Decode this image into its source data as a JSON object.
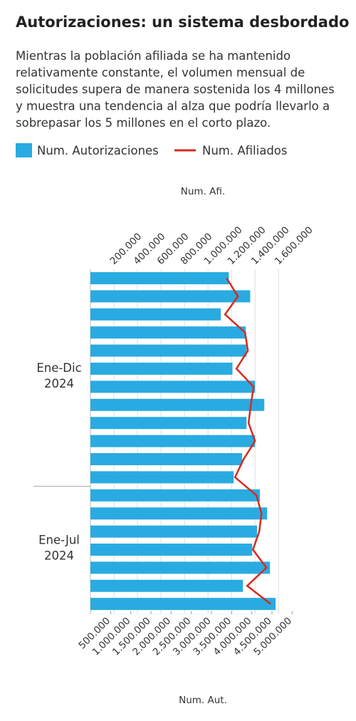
{
  "chart_data": {
    "type": "bar-line-horizontal",
    "title": "Autorizaciones: un sistema desbordado",
    "subtitle": "Mientras la población afiliada se ha mantenido relativamente constante, el volumen mensual de solicitudes supera de manera sostenida los 4 millones y muestra una tendencia al alza que podría llevarlo a sobrepasar los 5 millones en el corto plazo.",
    "groups": [
      {
        "label": [
          "Ene-Dic",
          "2024"
        ],
        "count": 12
      },
      {
        "label": [
          "Ene-Jul",
          "2024"
        ],
        "count": 7
      }
    ],
    "series": [
      {
        "name": "Num. Autorizaciones",
        "color": "#29abe2",
        "axis": "x",
        "values": [
          3430000,
          3960000,
          3230000,
          3850000,
          3870000,
          3520000,
          4080000,
          4310000,
          3870000,
          4080000,
          3760000,
          3550000,
          4200000,
          4380000,
          4130000,
          4010000,
          4450000,
          3780000,
          4590000
        ]
      },
      {
        "name": "Num. Afiliados",
        "color": "#d52b1e",
        "axis": "x2",
        "values": [
          1158000,
          1255000,
          1145000,
          1315000,
          1339000,
          1242000,
          1388000,
          1364000,
          1345000,
          1400000,
          1303000,
          1230000,
          1412000,
          1455000,
          1436000,
          1382000,
          1497000,
          1333000,
          1533000
        ]
      }
    ],
    "xlabel": "Num. Aut.",
    "x2label": "Num. Afi.",
    "xlim": [
      0,
      5100000
    ],
    "xticks": [
      {
        "value": 500000,
        "label": "500.000"
      },
      {
        "value": 1000000,
        "label": "1.000.000"
      },
      {
        "value": 1500000,
        "label": "1.500.000"
      },
      {
        "value": 2000000,
        "label": "2.000.000"
      },
      {
        "value": 2500000,
        "label": "2.500.000"
      },
      {
        "value": 3000000,
        "label": "3.000.000"
      },
      {
        "value": 3500000,
        "label": "3.500.000"
      },
      {
        "value": 4000000,
        "label": "4.000.000"
      },
      {
        "value": 4500000,
        "label": "4.500.000"
      },
      {
        "value": 5000000,
        "label": "5.000.000"
      }
    ],
    "x2lim": [
      0,
      1750000
    ],
    "x2ticks": [
      {
        "value": 200000,
        "label": "200.000"
      },
      {
        "value": 400000,
        "label": "400.000"
      },
      {
        "value": 600000,
        "label": "600.000"
      },
      {
        "value": 800000,
        "label": "800.000"
      },
      {
        "value": 1000000,
        "label": "1.000.000"
      },
      {
        "value": 1200000,
        "label": "1.200.000"
      },
      {
        "value": 1400000,
        "label": "1.400.000"
      },
      {
        "value": 1600000,
        "label": "1.600.000"
      }
    ]
  }
}
